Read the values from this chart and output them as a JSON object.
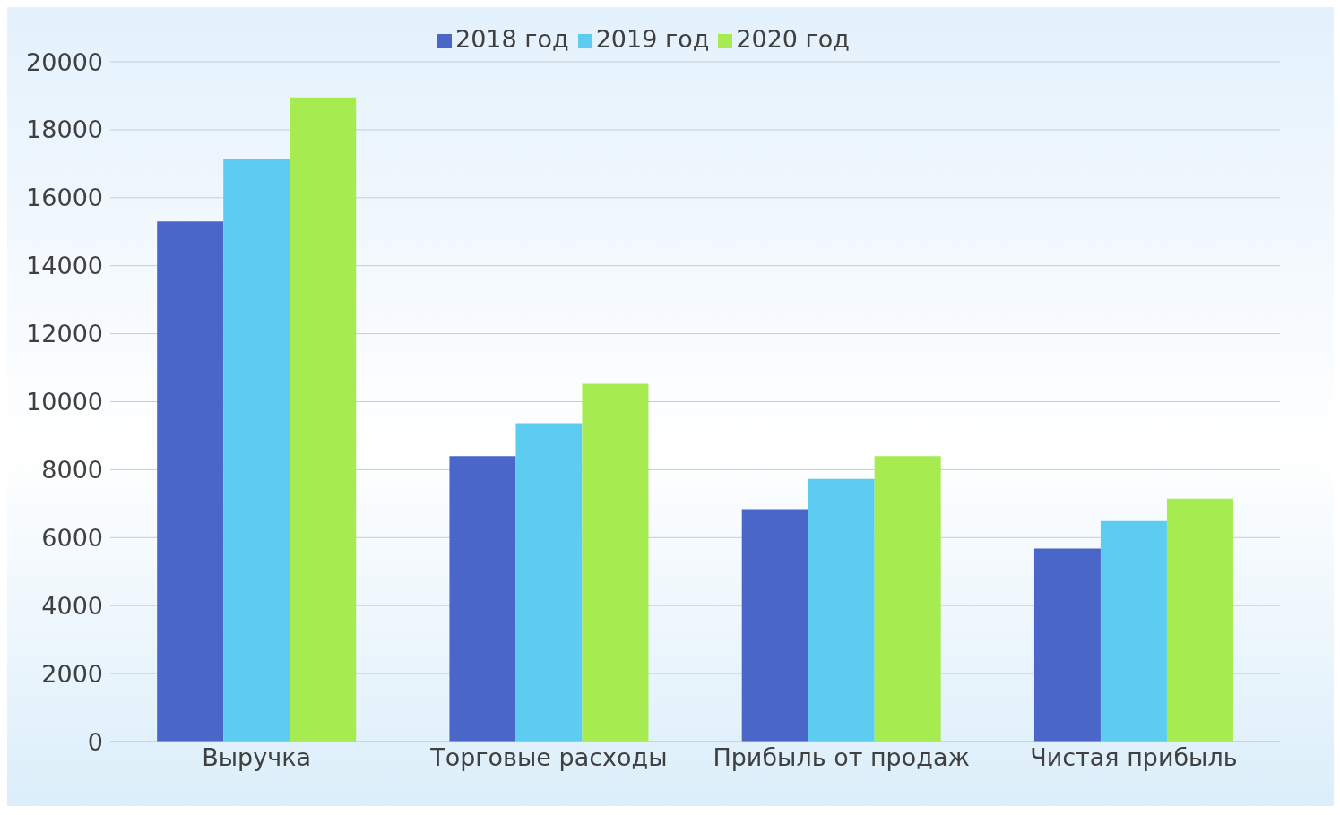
{
  "chart_data": {
    "type": "bar",
    "categories": [
      "Выручка",
      "Торговые расходы",
      "Прибыль от продаж",
      "Чистая прибыль"
    ],
    "series": [
      {
        "name": "2018 год",
        "color": "#4a66c8",
        "values": [
          15300,
          8400,
          6840,
          5680
        ]
      },
      {
        "name": "2019 год",
        "color": "#5ccdf0",
        "values": [
          17150,
          9370,
          7730,
          6490
        ]
      },
      {
        "name": "2020 год",
        "color": "#a6eb50",
        "values": [
          18950,
          10530,
          8400,
          7150
        ]
      }
    ],
    "ylim": [
      0,
      20000
    ],
    "yticks": [
      0,
      2000,
      4000,
      6000,
      8000,
      10000,
      12000,
      14000,
      16000,
      18000,
      20000
    ],
    "grid": "y",
    "legend": "top"
  }
}
